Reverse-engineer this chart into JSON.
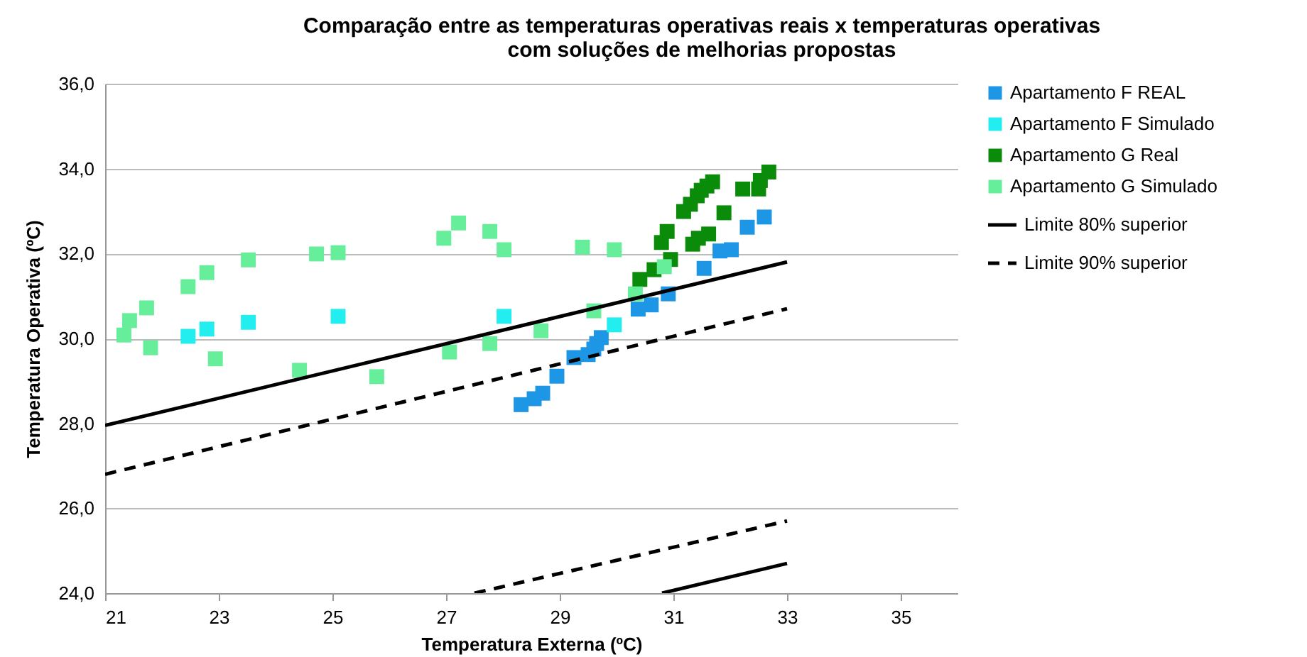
{
  "chart_data": {
    "type": "scatter",
    "title": "Comparação entre as temperaturas operativas reais x temperaturas operativas\ncom soluções de melhorias propostas",
    "xlabel": "Temperatura Externa (ºC)",
    "ylabel": "Temperatura Operativa (ºC)",
    "xlim": [
      21,
      36
    ],
    "xticks": [
      21,
      23,
      25,
      27,
      29,
      31,
      33,
      35
    ],
    "ylim": [
      24,
      36
    ],
    "yticks": [
      {
        "value": 24,
        "label": "24,0"
      },
      {
        "value": 26,
        "label": "26,0"
      },
      {
        "value": 28,
        "label": "28,0"
      },
      {
        "value": 30,
        "label": "30,0"
      },
      {
        "value": 32,
        "label": "32,0"
      },
      {
        "value": 34,
        "label": "34,0"
      },
      {
        "value": 36,
        "label": "36,0"
      }
    ],
    "grid": "y",
    "legend": "right",
    "marker": "square",
    "series": [
      {
        "name": "Apartamento F REAL",
        "color": "#1e96e6",
        "x": [
          28.32,
          28.55,
          28.7,
          28.95,
          29.25,
          29.5,
          29.6,
          29.65,
          29.73,
          30.38,
          30.61,
          30.91,
          31.54,
          31.82,
          32.02,
          32.3,
          32.6
        ],
        "values": [
          28.44,
          28.58,
          28.71,
          29.11,
          29.55,
          29.62,
          29.75,
          29.88,
          30.02,
          30.69,
          30.79,
          31.05,
          31.65,
          32.06,
          32.09,
          32.62,
          32.86
        ]
      },
      {
        "name": "Apartamento F Simulado",
        "color": "#22eef0",
        "x": [
          22.46,
          22.79,
          23.52,
          25.1,
          28.02,
          29.96
        ],
        "values": [
          30.05,
          30.22,
          30.38,
          30.52,
          30.52,
          30.32
        ]
      },
      {
        "name": "Apartamento G Real",
        "color": "#0a8c0a",
        "x": [
          30.41,
          30.66,
          30.79,
          30.89,
          30.95,
          31.18,
          31.3,
          31.42,
          31.49,
          31.59,
          31.69,
          31.34,
          31.44,
          31.62,
          31.89,
          32.22,
          32.5,
          32.53,
          32.68
        ],
        "values": [
          31.39,
          31.62,
          32.26,
          32.52,
          31.86,
          32.99,
          33.16,
          33.36,
          33.49,
          33.59,
          33.69,
          32.22,
          32.36,
          32.46,
          32.96,
          33.52,
          33.52,
          33.72,
          33.92
        ]
      },
      {
        "name": "Apartamento G Simulado",
        "color": "#66ee9a",
        "x": [
          21.33,
          21.43,
          21.73,
          21.8,
          22.46,
          22.79,
          22.94,
          23.52,
          24.42,
          24.72,
          25.1,
          25.78,
          26.96,
          27.22,
          27.77,
          28.02,
          27.77,
          27.06,
          28.67,
          29.4,
          29.96,
          29.6,
          30.33,
          30.84
        ],
        "values": [
          30.08,
          30.42,
          30.72,
          29.78,
          31.22,
          31.55,
          29.52,
          31.85,
          29.25,
          31.99,
          32.02,
          29.1,
          32.36,
          32.72,
          32.52,
          32.09,
          29.88,
          29.68,
          30.18,
          32.15,
          32.09,
          30.65,
          31.05,
          31.69
        ]
      },
      {
        "name": "Limite 80% superior",
        "type": "line",
        "marker": "none",
        "line_style": "solid",
        "color": "#000000",
        "x": [
          21,
          33
        ],
        "values": [
          27.95,
          31.8
        ]
      },
      {
        "name": "Limite 90% superior",
        "type": "line",
        "marker": "none",
        "line_style": "dashed",
        "color": "#000000",
        "x": [
          21,
          33
        ],
        "values": [
          26.8,
          30.7
        ]
      },
      {
        "type": "line",
        "marker": "none",
        "line_style": "dashed",
        "color": "#000000",
        "x": [
          27.5,
          33
        ],
        "values": [
          24.0,
          25.7
        ]
      },
      {
        "type": "line",
        "marker": "none",
        "line_style": "solid",
        "color": "#000000",
        "x": [
          30.8,
          33
        ],
        "values": [
          24.0,
          24.7
        ]
      }
    ]
  }
}
